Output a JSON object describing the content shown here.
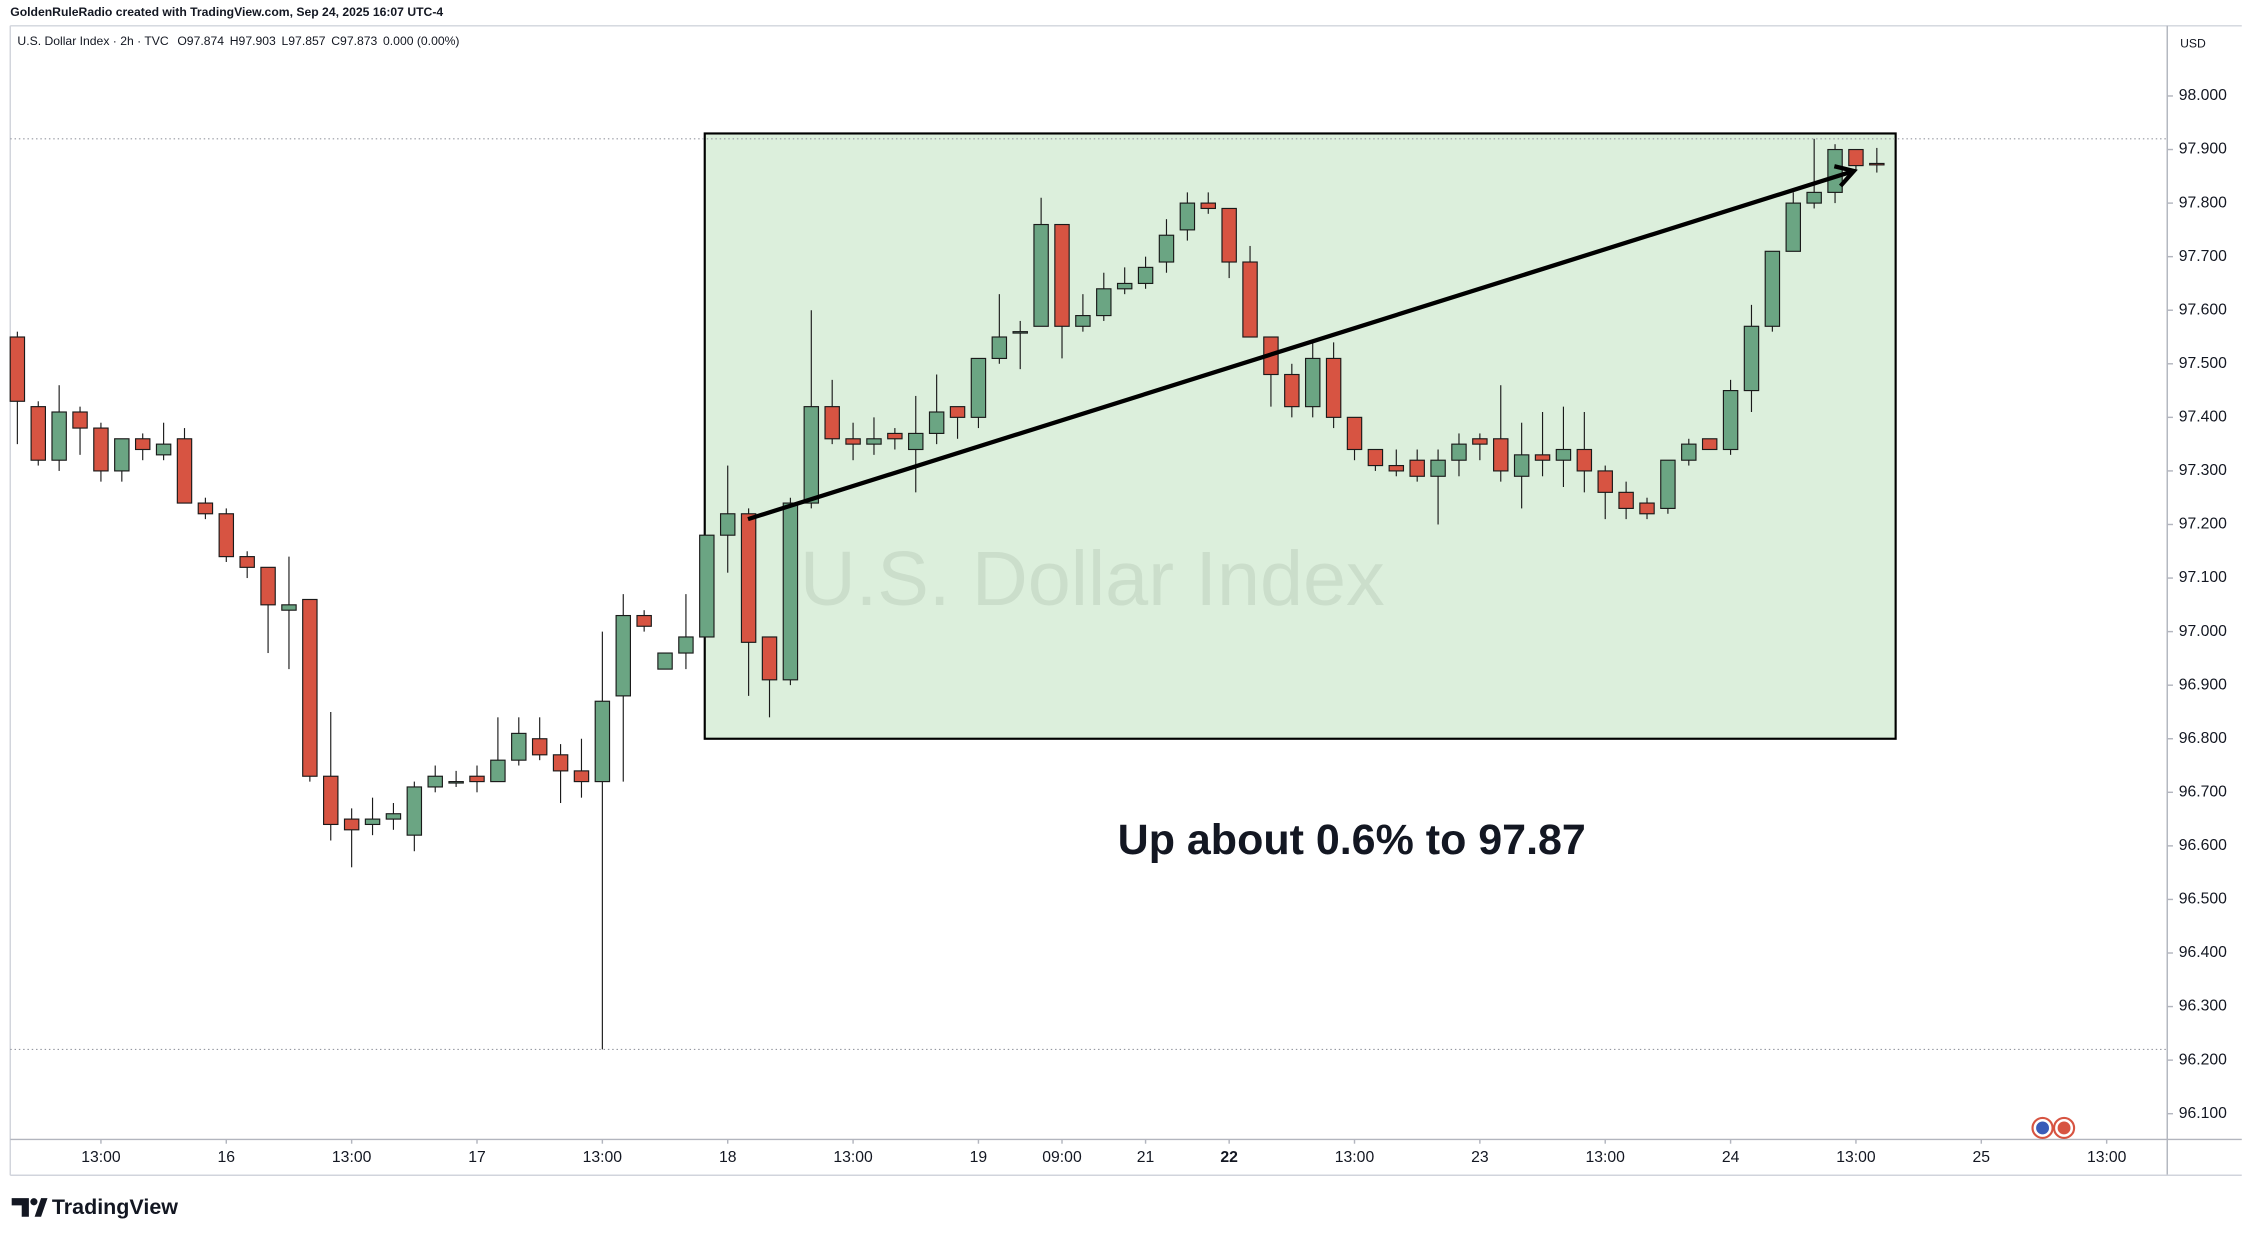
{
  "chart_data": {
    "type": "candlestick",
    "credit": "GoldenRuleRadio created with TradingView.com, Sep 24, 2025 16:07 UTC-4",
    "symbol": "U.S. Dollar Index · 2h · TVC",
    "ohlc_legend": [
      "O97.874",
      "H97.903",
      "L97.857",
      "C97.873",
      "0.000 (0.00%)"
    ],
    "legend_color": "#8e3a2c",
    "currency": "USD",
    "watermark": "U.S. Dollar Index",
    "annotation": "Up about 0.6% to 97.87",
    "brand": "TradingView",
    "up_color": "#6ba583",
    "down_color": "#d75442",
    "box": {
      "x": [
        32.9,
        89.9
      ],
      "y": [
        96.8,
        97.93
      ],
      "color": "#dcefdc"
    },
    "arrow": {
      "x": [
        34.97,
        87.9
      ],
      "y": [
        97.21,
        97.86
      ]
    },
    "open": [
      97.55,
      97.42,
      97.32,
      97.41,
      97.38,
      97.3,
      97.36,
      97.33,
      97.36,
      97.24,
      97.22,
      97.14,
      97.12,
      97.04,
      97.06,
      96.73,
      96.65,
      96.64,
      96.65,
      96.62,
      96.71,
      96.72,
      96.73,
      96.72,
      96.76,
      96.8,
      96.77,
      96.74,
      96.72,
      96.88,
      97.03,
      96.93,
      96.96,
      96.99,
      97.18,
      97.22,
      96.99,
      96.91,
      97.24,
      97.42,
      97.36,
      97.35,
      97.37,
      97.34,
      97.37,
      97.42,
      97.4,
      97.51,
      97.56,
      97.57,
      97.76,
      97.57,
      97.59,
      97.64,
      97.65,
      97.69,
      97.75,
      97.8,
      97.79,
      97.69,
      97.55,
      97.48,
      97.42,
      97.51,
      97.4,
      97.34,
      97.31,
      97.32,
      97.29,
      97.32,
      97.36,
      97.36,
      97.29,
      97.33,
      97.32,
      97.34,
      97.3,
      97.26,
      97.24,
      97.23,
      97.32,
      97.36,
      97.34,
      97.45,
      97.57,
      97.71,
      97.8,
      97.82,
      97.9,
      97.874
    ],
    "high": [
      97.56,
      97.43,
      97.46,
      97.42,
      97.39,
      97.36,
      97.37,
      97.39,
      97.38,
      97.25,
      97.23,
      97.15,
      97.12,
      97.14,
      97.06,
      96.85,
      96.67,
      96.69,
      96.68,
      96.72,
      96.75,
      96.74,
      96.75,
      96.84,
      96.84,
      96.84,
      96.79,
      96.8,
      97.0,
      97.07,
      97.04,
      96.96,
      97.07,
      97.18,
      97.31,
      97.23,
      96.99,
      97.25,
      97.6,
      97.47,
      97.39,
      97.4,
      97.38,
      97.44,
      97.48,
      97.42,
      97.51,
      97.63,
      97.58,
      97.81,
      97.76,
      97.63,
      97.67,
      97.68,
      97.7,
      97.77,
      97.82,
      97.82,
      97.79,
      97.72,
      97.55,
      97.5,
      97.54,
      97.54,
      97.4,
      97.34,
      97.34,
      97.34,
      97.34,
      97.37,
      97.37,
      97.46,
      97.39,
      97.41,
      97.42,
      97.41,
      97.31,
      97.28,
      97.25,
      97.32,
      97.36,
      97.36,
      97.47,
      97.61,
      97.71,
      97.82,
      97.92,
      97.91,
      97.9,
      97.903
    ],
    "low": [
      97.35,
      97.31,
      97.3,
      97.33,
      97.28,
      97.28,
      97.32,
      97.32,
      97.24,
      97.21,
      97.13,
      97.1,
      96.96,
      96.93,
      96.72,
      96.61,
      96.56,
      96.62,
      96.63,
      96.59,
      96.7,
      96.71,
      96.7,
      96.72,
      96.75,
      96.76,
      96.68,
      96.69,
      96.22,
      96.72,
      97.0,
      96.93,
      96.93,
      96.99,
      97.11,
      96.88,
      96.84,
      96.9,
      97.23,
      97.35,
      97.32,
      97.33,
      97.34,
      97.26,
      97.35,
      97.36,
      97.38,
      97.5,
      97.49,
      97.57,
      97.51,
      97.56,
      97.58,
      97.63,
      97.64,
      97.67,
      97.73,
      97.78,
      97.66,
      97.55,
      97.42,
      97.4,
      97.4,
      97.38,
      97.32,
      97.3,
      97.29,
      97.28,
      97.2,
      97.29,
      97.32,
      97.28,
      97.23,
      97.29,
      97.27,
      97.26,
      97.21,
      97.21,
      97.21,
      97.22,
      97.31,
      97.34,
      97.33,
      97.41,
      97.56,
      97.71,
      97.79,
      97.8,
      97.86,
      97.857
    ],
    "close": [
      97.43,
      97.32,
      97.41,
      97.38,
      97.3,
      97.36,
      97.34,
      97.35,
      97.24,
      97.22,
      97.14,
      97.12,
      97.05,
      97.05,
      96.73,
      96.64,
      96.63,
      96.65,
      96.66,
      96.71,
      96.73,
      96.72,
      96.72,
      96.76,
      96.81,
      96.77,
      96.74,
      96.72,
      96.87,
      97.03,
      97.01,
      96.96,
      96.99,
      97.18,
      97.22,
      96.98,
      96.91,
      97.24,
      97.42,
      97.36,
      97.35,
      97.36,
      97.36,
      97.37,
      97.41,
      97.4,
      97.51,
      97.55,
      97.56,
      97.76,
      97.57,
      97.59,
      97.64,
      97.65,
      97.68,
      97.74,
      97.8,
      97.79,
      97.69,
      97.55,
      97.48,
      97.42,
      97.51,
      97.4,
      97.34,
      97.31,
      97.3,
      97.29,
      97.32,
      97.35,
      97.35,
      97.3,
      97.33,
      97.32,
      97.34,
      97.3,
      97.26,
      97.23,
      97.22,
      97.32,
      97.35,
      97.34,
      97.45,
      97.57,
      97.71,
      97.8,
      97.82,
      97.9,
      97.87,
      97.873
    ],
    "xlim": [
      -0.34,
      102.9
    ],
    "ylim": [
      96.052,
      98.131
    ],
    "xticks": [
      {
        "value": 4,
        "label": "13:00"
      },
      {
        "value": 10,
        "label": "16"
      },
      {
        "value": 16,
        "label": "13:00"
      },
      {
        "value": 22,
        "label": "17"
      },
      {
        "value": 28,
        "label": "13:00"
      },
      {
        "value": 34,
        "label": "18"
      },
      {
        "value": 40,
        "label": "13:00"
      },
      {
        "value": 46,
        "label": "19"
      },
      {
        "value": 50,
        "label": "09:00"
      },
      {
        "value": 54,
        "label": "21"
      },
      {
        "value": 58,
        "label": "22",
        "bold": true
      },
      {
        "value": 64,
        "label": "13:00"
      },
      {
        "value": 70,
        "label": "23"
      },
      {
        "value": 76,
        "label": "13:00"
      },
      {
        "value": 82,
        "label": "24"
      },
      {
        "value": 88,
        "label": "13:00"
      },
      {
        "value": 94,
        "label": "25"
      },
      {
        "value": 100,
        "label": "13:00"
      }
    ],
    "yticks": [
      {
        "value": 96.1,
        "label": "96.100"
      },
      {
        "value": 96.2,
        "label": "96.200"
      },
      {
        "value": 96.3,
        "label": "96.300"
      },
      {
        "value": 96.4,
        "label": "96.400"
      },
      {
        "value": 96.5,
        "label": "96.500"
      },
      {
        "value": 96.6,
        "label": "96.600"
      },
      {
        "value": 96.7,
        "label": "96.700"
      },
      {
        "value": 96.8,
        "label": "96.800"
      },
      {
        "value": 96.9,
        "label": "96.900"
      },
      {
        "value": 97.0,
        "label": "97.000"
      },
      {
        "value": 97.1,
        "label": "97.100"
      },
      {
        "value": 97.2,
        "label": "97.200"
      },
      {
        "value": 97.3,
        "label": "97.300"
      },
      {
        "value": 97.4,
        "label": "97.400"
      },
      {
        "value": 97.5,
        "label": "97.500"
      },
      {
        "value": 97.6,
        "label": "97.600"
      },
      {
        "value": 97.7,
        "label": "97.700"
      },
      {
        "value": 97.8,
        "label": "97.800"
      },
      {
        "value": 97.9,
        "label": "97.900"
      },
      {
        "value": 98.0,
        "label": "98.000"
      }
    ],
    "grid": false
  }
}
